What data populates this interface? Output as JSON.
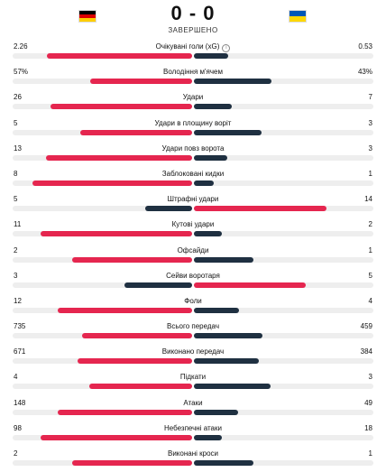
{
  "match": {
    "score": "0 - 0",
    "status": "ЗАВЕРШЕНО",
    "home_flag": "germany-flag",
    "away_flag": "ukraine-flag"
  },
  "colors": {
    "leader": "#e5264f",
    "trailer": "#1f3041",
    "track": "#eeeeee"
  },
  "stats": [
    {
      "label": "Очікувані голи (xG)",
      "home": "2.26",
      "away": "0.53",
      "home_num": 2.26,
      "away_num": 0.53,
      "info": true
    },
    {
      "label": "Володіння м'ячем",
      "home": "57%",
      "away": "43%",
      "home_num": 57,
      "away_num": 43
    },
    {
      "label": "Удари",
      "home": "26",
      "away": "7",
      "home_num": 26,
      "away_num": 7
    },
    {
      "label": "Удари в площину воріт",
      "home": "5",
      "away": "3",
      "home_num": 5,
      "away_num": 3
    },
    {
      "label": "Удари повз ворота",
      "home": "13",
      "away": "3",
      "home_num": 13,
      "away_num": 3
    },
    {
      "label": "Заблоковані кидки",
      "home": "8",
      "away": "1",
      "home_num": 8,
      "away_num": 1
    },
    {
      "label": "Штрафні удари",
      "home": "5",
      "away": "14",
      "home_num": 5,
      "away_num": 14
    },
    {
      "label": "Кутові удари",
      "home": "11",
      "away": "2",
      "home_num": 11,
      "away_num": 2
    },
    {
      "label": "Офсайди",
      "home": "2",
      "away": "1",
      "home_num": 2,
      "away_num": 1
    },
    {
      "label": "Сейви воротаря",
      "home": "3",
      "away": "5",
      "home_num": 3,
      "away_num": 5
    },
    {
      "label": "Фоли",
      "home": "12",
      "away": "4",
      "home_num": 12,
      "away_num": 4
    },
    {
      "label": "Всього передач",
      "home": "735",
      "away": "459",
      "home_num": 735,
      "away_num": 459
    },
    {
      "label": "Виконано передач",
      "home": "671",
      "away": "384",
      "home_num": 671,
      "away_num": 384
    },
    {
      "label": "Підкати",
      "home": "4",
      "away": "3",
      "home_num": 4,
      "away_num": 3
    },
    {
      "label": "Атаки",
      "home": "148",
      "away": "49",
      "home_num": 148,
      "away_num": 49
    },
    {
      "label": "Небезпечні атаки",
      "home": "98",
      "away": "18",
      "home_num": 98,
      "away_num": 18
    },
    {
      "label": "Виконані кроси",
      "home": "2",
      "away": "1",
      "home_num": 2,
      "away_num": 1
    }
  ]
}
